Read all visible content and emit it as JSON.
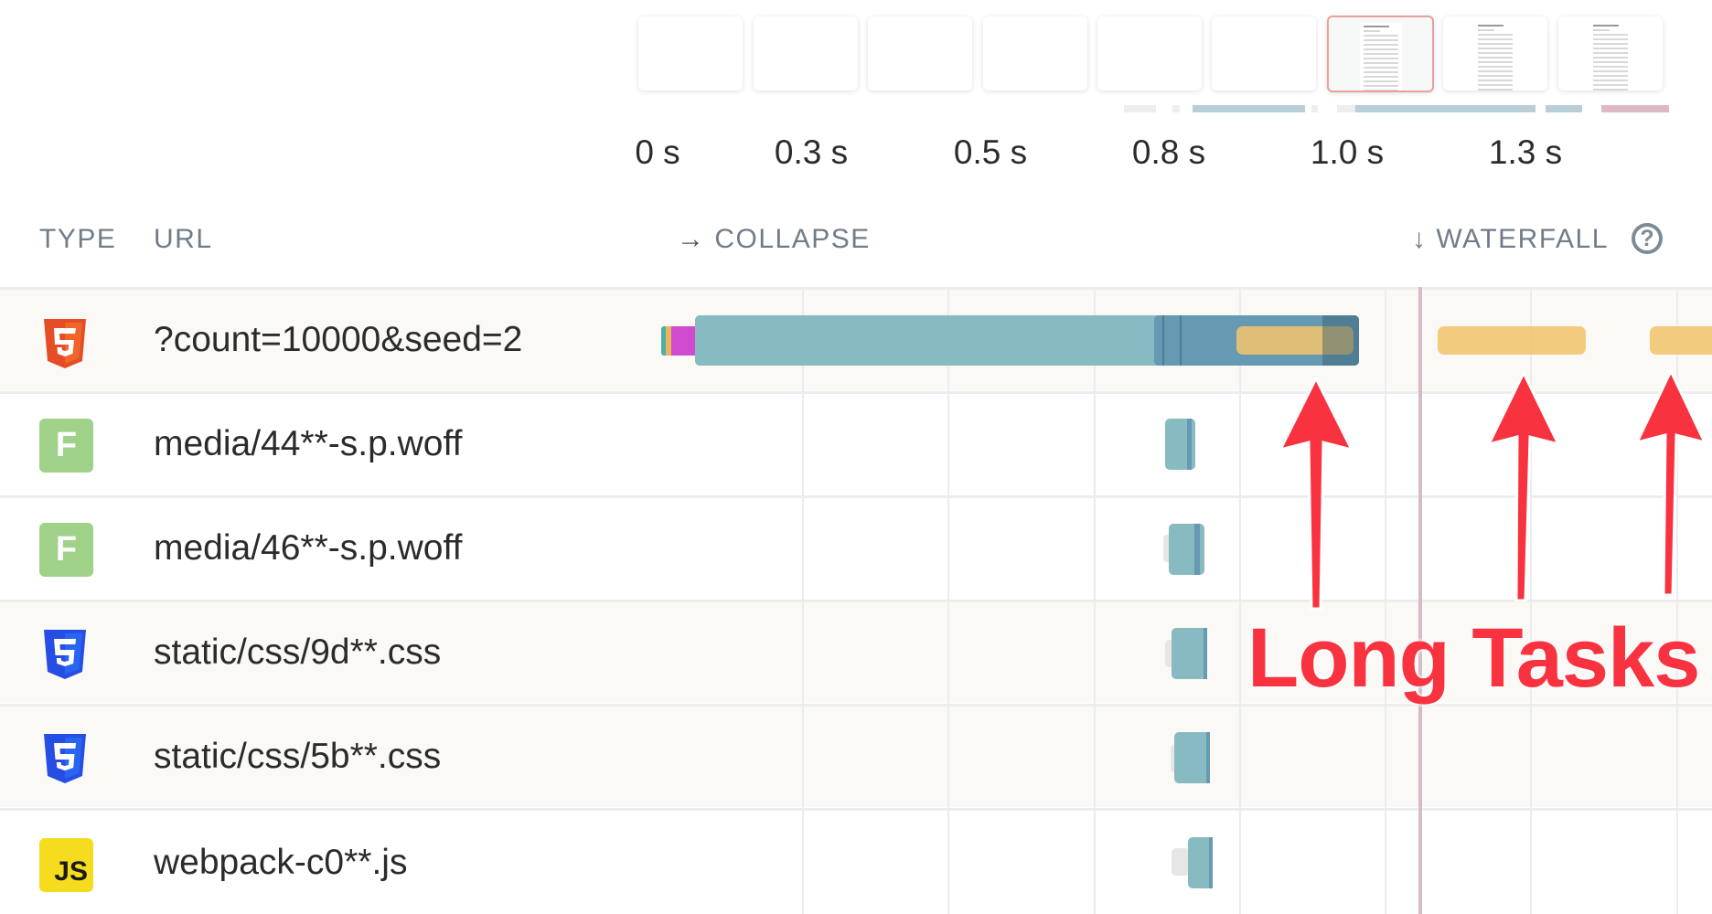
{
  "filmstrip": {
    "frames": [
      {
        "state": "blank"
      },
      {
        "state": "blank"
      },
      {
        "state": "blank"
      },
      {
        "state": "blank"
      },
      {
        "state": "blank"
      },
      {
        "state": "blank"
      },
      {
        "state": "rendered",
        "selected": true
      },
      {
        "state": "rendered"
      },
      {
        "state": "rendered"
      }
    ],
    "ticks": [
      "0 s",
      "0.3 s",
      "0.5 s",
      "0.8 s",
      "1.0 s",
      "1.3 s"
    ]
  },
  "header": {
    "type_label": "TYPE",
    "url_label": "URL",
    "collapse_icon": "→",
    "collapse_label": "COLLAPSE",
    "waterfall_icon": "↓",
    "waterfall_label": "WATERFALL",
    "help_icon": "?"
  },
  "rows": [
    {
      "type": "html",
      "icon": "html5-icon",
      "url": "?count=10000&seed=2"
    },
    {
      "type": "font",
      "icon": "font-icon",
      "icon_text": "F",
      "url": "media/44**-s.p.woff"
    },
    {
      "type": "font",
      "icon": "font-icon",
      "icon_text": "F",
      "url": "media/46**-s.p.woff"
    },
    {
      "type": "css",
      "icon": "css3-icon",
      "url": "static/css/9d**.css"
    },
    {
      "type": "css",
      "icon": "css3-icon",
      "url": "static/css/5b**.css"
    },
    {
      "type": "js",
      "icon": "js-icon",
      "icon_text": "JS",
      "url": "webpack-c0**.js"
    }
  ],
  "annotation": {
    "text": "Long Tasks",
    "color": "#f9323f"
  },
  "colors": {
    "request_bar": "#87bbc1",
    "download_bar": "#6699b2",
    "long_task": "#f0c46e",
    "font_icon": "#9fd288",
    "js_icon": "#f6dc1e",
    "html_icon": "#e44d26",
    "css_icon": "#264de4",
    "marker_line": "#d6bcc6"
  }
}
